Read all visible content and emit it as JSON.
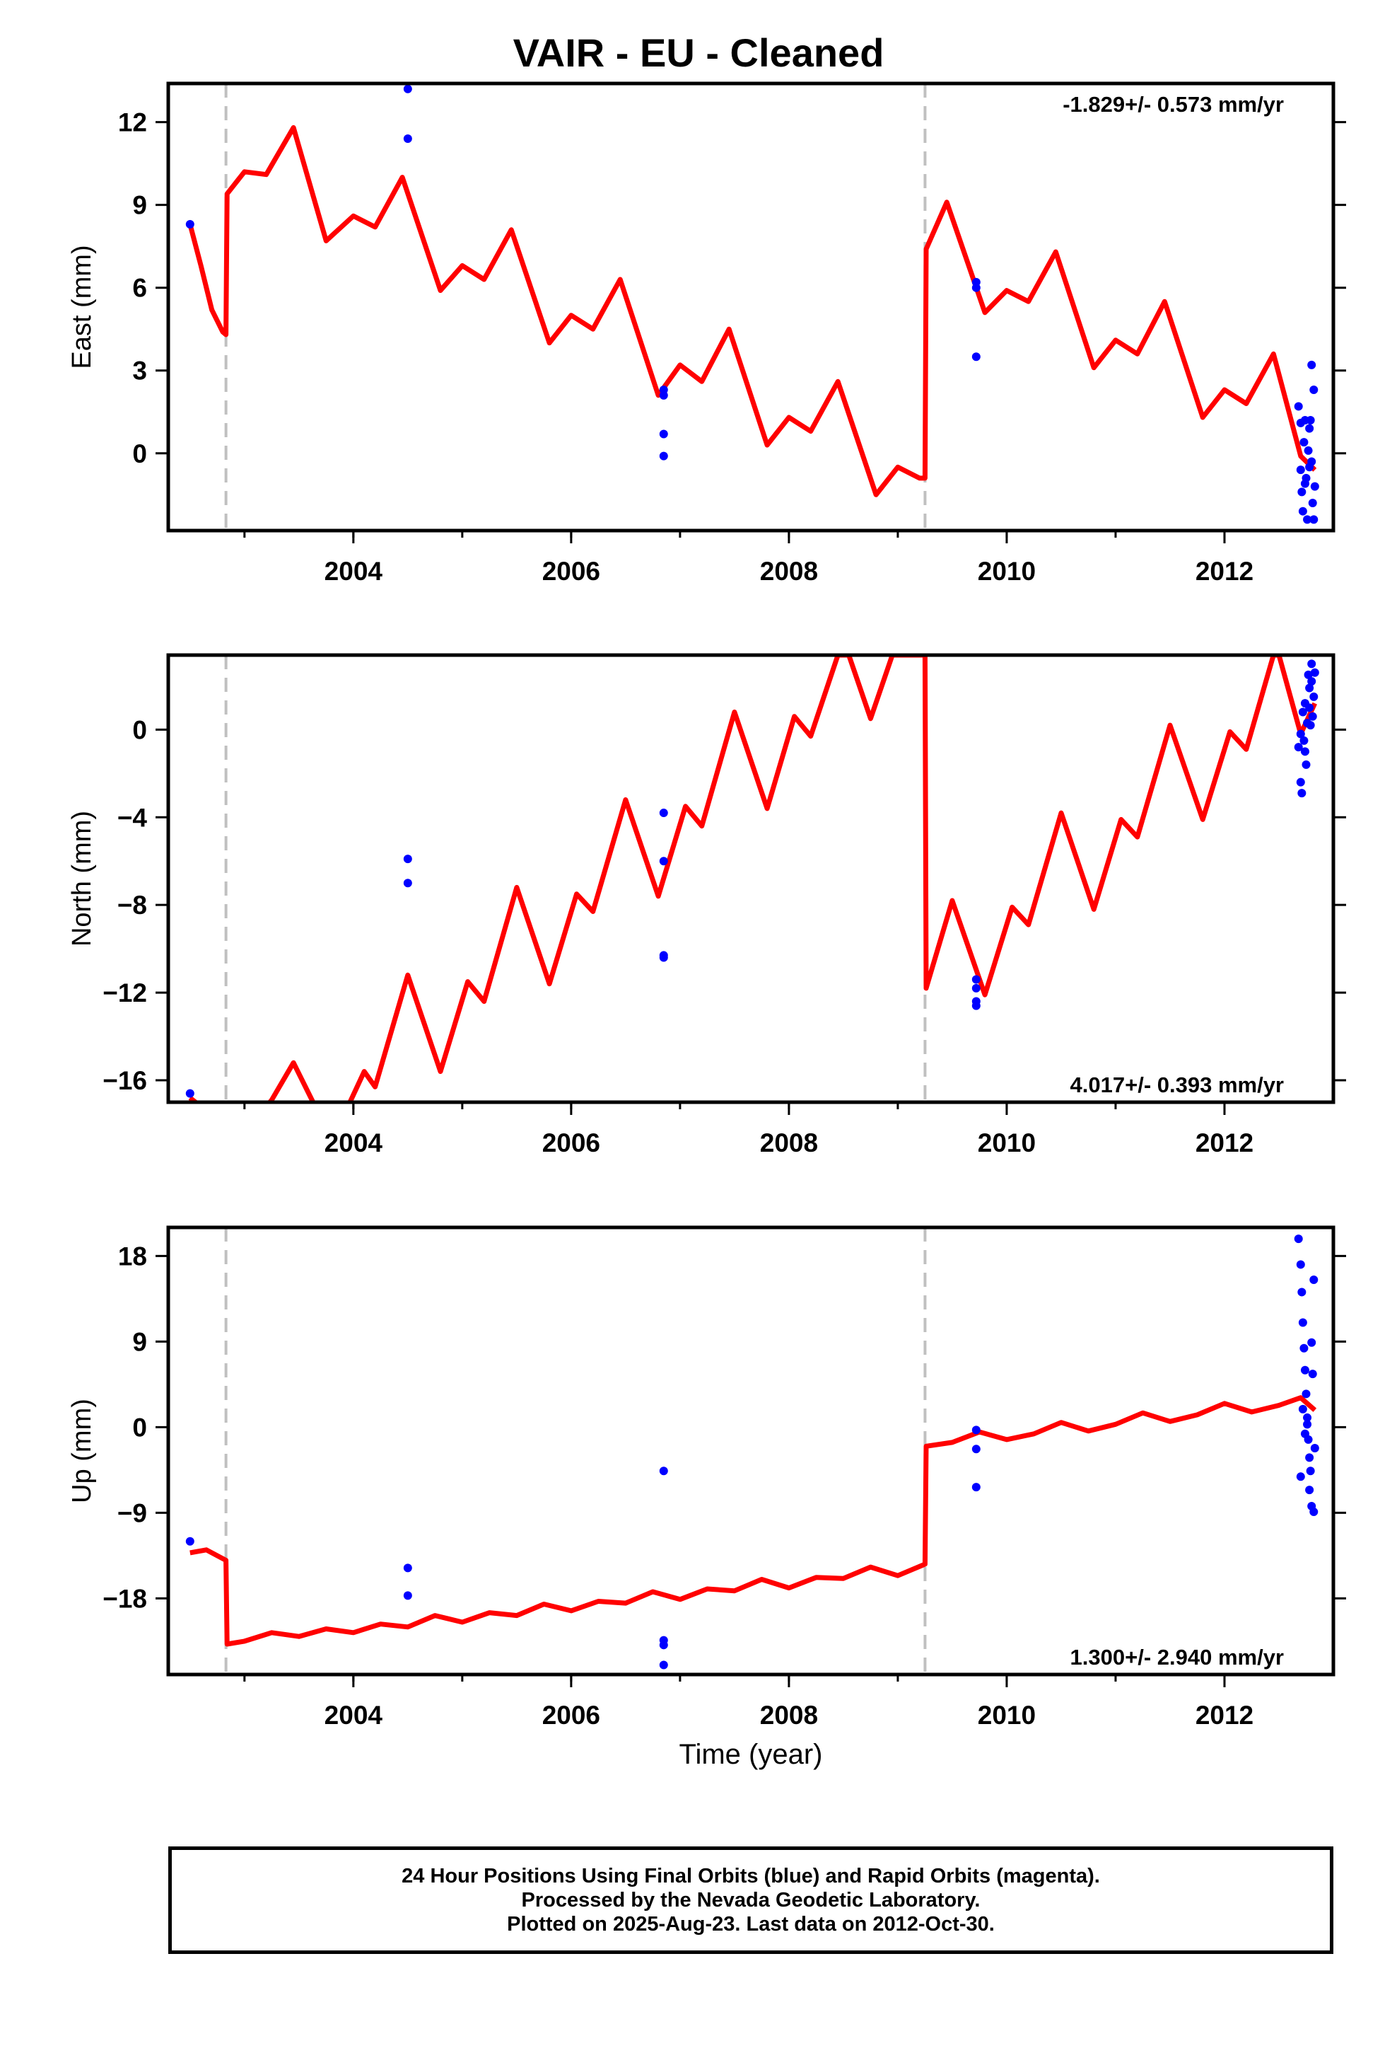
{
  "title": "VAIR  - EU - Cleaned",
  "footer": {
    "line1": "24 Hour Positions Using Final Orbits (blue) and Rapid Orbits (magenta).",
    "line2": "Processed by the Nevada Geodetic Laboratory.",
    "line3": "Plotted on 2025-Aug-23. Last data on 2012-Oct-30."
  },
  "colors": {
    "fit_line": "#ff0000",
    "final_orbits": "#0000ff",
    "offset_marker": "#c0c0c0",
    "axes": "#000000"
  },
  "chart_data": [
    {
      "type": "scatter",
      "component": "east",
      "ylabel": "East (mm)",
      "xlabel": "",
      "xlim": [
        2002.3,
        2013.0
      ],
      "ylim": [
        -2.8,
        13.4
      ],
      "yticks": [
        0,
        3,
        6,
        9,
        12
      ],
      "xticks": [
        2004,
        2006,
        2008,
        2010,
        2012
      ],
      "rate_label": "-1.829+/- 0.573 mm/yr",
      "rate_label_position": "top-right",
      "offsets": [
        2002.83,
        2009.25
      ],
      "fit": {
        "x": [
          2002.5,
          2002.6,
          2002.7,
          2002.8,
          2002.83,
          2002.84,
          2003.0,
          2003.2,
          2003.45,
          2003.75,
          2004.0,
          2004.2,
          2004.45,
          2004.8,
          2005.0,
          2005.2,
          2005.45,
          2005.8,
          2006.0,
          2006.2,
          2006.45,
          2006.8,
          2007.0,
          2007.2,
          2007.45,
          2007.8,
          2008.0,
          2008.2,
          2008.45,
          2008.8,
          2009.0,
          2009.2,
          2009.25,
          2009.26,
          2009.45,
          2009.8,
          2010.0,
          2010.2,
          2010.45,
          2010.8,
          2011.0,
          2011.2,
          2011.45,
          2011.8,
          2012.0,
          2012.2,
          2012.45,
          2012.7,
          2012.83
        ],
        "y": [
          8.3,
          6.8,
          5.2,
          4.4,
          4.3,
          9.4,
          10.2,
          10.1,
          11.8,
          7.7,
          8.6,
          8.2,
          10.0,
          5.9,
          6.8,
          6.3,
          8.1,
          4.0,
          5.0,
          4.5,
          6.3,
          2.1,
          3.2,
          2.6,
          4.5,
          0.3,
          1.3,
          0.8,
          2.6,
          -1.5,
          -0.5,
          -0.9,
          -0.9,
          7.4,
          9.1,
          5.1,
          5.9,
          5.5,
          7.3,
          3.1,
          4.1,
          3.6,
          5.5,
          1.3,
          2.3,
          1.8,
          3.6,
          -0.1,
          -0.6
        ]
      },
      "points": {
        "x": [
          2002.5,
          2004.5,
          2004.5,
          2006.85,
          2006.85,
          2006.85,
          2006.85,
          2009.72,
          2009.72,
          2009.72,
          2012.68,
          2012.7,
          2012.71,
          2012.72,
          2012.73,
          2012.74,
          2012.75,
          2012.76,
          2012.77,
          2012.78,
          2012.79,
          2012.8,
          2012.81,
          2012.82,
          2012.83,
          2012.7,
          2012.74,
          2012.78,
          2012.8,
          2012.82
        ],
        "y": [
          8.3,
          13.2,
          11.4,
          2.3,
          2.1,
          0.7,
          -0.1,
          6.2,
          6.0,
          3.5,
          1.7,
          1.1,
          -1.4,
          -2.1,
          0.4,
          1.2,
          -0.9,
          -2.4,
          0.1,
          -0.5,
          1.2,
          3.2,
          -1.8,
          2.3,
          -1.2,
          -0.6,
          -1.1,
          0.9,
          -0.3,
          -2.4
        ]
      }
    },
    {
      "type": "scatter",
      "component": "north",
      "ylabel": "North (mm)",
      "xlabel": "",
      "xlim": [
        2002.3,
        2013.0
      ],
      "ylim": [
        -17.0,
        3.4
      ],
      "yticks": [
        -16,
        -12,
        -8,
        -4,
        0
      ],
      "xticks": [
        2004,
        2006,
        2008,
        2010,
        2012
      ],
      "rate_label": "4.017+/- 0.393 mm/yr",
      "rate_label_position": "bottom-right",
      "offsets": [
        2002.83,
        2009.25
      ],
      "fit": {
        "x": [
          2002.5,
          2002.6,
          2003.0,
          2003.2,
          2003.25,
          2003.45,
          2003.65,
          2003.95,
          2004.1,
          2004.2,
          2004.5,
          2004.8,
          2005.05,
          2005.2,
          2005.5,
          2005.8,
          2006.05,
          2006.2,
          2006.5,
          2006.8,
          2007.05,
          2007.2,
          2007.5,
          2007.8,
          2008.05,
          2008.2,
          2008.45,
          2008.55,
          2008.75,
          2008.95,
          2009.1,
          2009.25,
          2009.26,
          2009.5,
          2009.8,
          2010.05,
          2010.2,
          2010.5,
          2010.8,
          2011.05,
          2011.2,
          2011.5,
          2011.8,
          2012.05,
          2012.2,
          2012.45,
          2012.5,
          2012.7,
          2012.83
        ],
        "y": [
          -16.8,
          -17.2,
          -17.2,
          -17.2,
          -16.9,
          -15.2,
          -17.2,
          -17.2,
          -15.6,
          -16.3,
          -11.2,
          -15.6,
          -11.5,
          -12.4,
          -7.2,
          -11.6,
          -7.5,
          -8.3,
          -3.2,
          -7.6,
          -3.5,
          -4.4,
          0.8,
          -3.6,
          0.6,
          -0.3,
          3.4,
          3.4,
          0.5,
          3.4,
          3.4,
          3.4,
          -11.8,
          -7.8,
          -12.1,
          -8.1,
          -8.9,
          -3.8,
          -8.2,
          -4.1,
          -4.9,
          0.2,
          -4.1,
          -0.1,
          -0.9,
          3.4,
          3.4,
          -0.2,
          1.2
        ]
      },
      "points": {
        "x": [
          2002.5,
          2004.5,
          2004.5,
          2006.85,
          2006.85,
          2006.85,
          2006.85,
          2009.72,
          2009.72,
          2009.72,
          2009.72,
          2012.68,
          2012.7,
          2012.71,
          2012.72,
          2012.73,
          2012.74,
          2012.75,
          2012.76,
          2012.77,
          2012.78,
          2012.79,
          2012.8,
          2012.81,
          2012.82,
          2012.83,
          2012.7,
          2012.74,
          2012.78,
          2012.8
        ],
        "y": [
          -16.6,
          -5.9,
          -7.0,
          -3.8,
          -6.0,
          -10.3,
          -10.4,
          -11.4,
          -11.8,
          -12.4,
          -12.6,
          -0.8,
          -2.4,
          -2.9,
          0.8,
          -0.5,
          1.2,
          -1.6,
          0.3,
          2.5,
          1.9,
          0.2,
          3.0,
          0.6,
          1.5,
          2.6,
          -0.2,
          -1.0,
          1.0,
          2.2
        ]
      }
    },
    {
      "type": "scatter",
      "component": "up",
      "ylabel": "Up (mm)",
      "xlabel": "Time (year)",
      "xlim": [
        2002.3,
        2013.0
      ],
      "ylim": [
        -26.0,
        21.0
      ],
      "yticks": [
        -18,
        -9,
        0,
        9,
        18
      ],
      "xticks": [
        2004,
        2006,
        2008,
        2010,
        2012
      ],
      "rate_label": "1.300+/- 2.940 mm/yr",
      "rate_label_position": "bottom-right",
      "offsets": [
        2002.83,
        2009.25
      ],
      "fit": {
        "x": [
          2002.5,
          2002.65,
          2002.83,
          2002.84,
          2003.0,
          2003.25,
          2003.5,
          2003.75,
          2004.0,
          2004.25,
          2004.5,
          2004.75,
          2005.0,
          2005.25,
          2005.5,
          2005.75,
          2006.0,
          2006.25,
          2006.5,
          2006.75,
          2007.0,
          2007.25,
          2007.5,
          2007.75,
          2008.0,
          2008.25,
          2008.5,
          2008.75,
          2009.0,
          2009.25,
          2009.26,
          2009.5,
          2009.75,
          2010.0,
          2010.25,
          2010.5,
          2010.75,
          2011.0,
          2011.25,
          2011.5,
          2011.75,
          2012.0,
          2012.25,
          2012.5,
          2012.7,
          2012.83
        ],
        "y": [
          -13.2,
          -12.9,
          -14.0,
          -22.8,
          -22.5,
          -21.6,
          -22.0,
          -21.2,
          -21.6,
          -20.7,
          -21.0,
          -19.8,
          -20.5,
          -19.5,
          -19.8,
          -18.6,
          -19.3,
          -18.3,
          -18.5,
          -17.3,
          -18.1,
          -17.0,
          -17.2,
          -16.0,
          -16.9,
          -15.8,
          -15.9,
          -14.7,
          -15.6,
          -14.4,
          -2.0,
          -1.6,
          -0.5,
          -1.3,
          -0.7,
          0.5,
          -0.4,
          0.3,
          1.5,
          0.6,
          1.3,
          2.5,
          1.6,
          2.3,
          3.1,
          1.8
        ]
      },
      "points": {
        "x": [
          2002.5,
          2004.5,
          2004.5,
          2006.85,
          2006.85,
          2006.85,
          2006.85,
          2009.72,
          2009.72,
          2009.72,
          2012.68,
          2012.7,
          2012.71,
          2012.72,
          2012.73,
          2012.74,
          2012.75,
          2012.76,
          2012.77,
          2012.78,
          2012.79,
          2012.8,
          2012.81,
          2012.82,
          2012.83,
          2012.7,
          2012.72,
          2012.74,
          2012.76,
          2012.78,
          2012.8,
          2012.82
        ],
        "y": [
          -12.0,
          -14.8,
          -17.7,
          -4.6,
          -22.4,
          -22.9,
          -25.0,
          -0.3,
          -2.3,
          -6.3,
          19.8,
          17.1,
          14.2,
          11.0,
          8.3,
          6.0,
          3.5,
          1.0,
          -1.3,
          -3.2,
          -4.6,
          8.9,
          5.6,
          15.5,
          -2.2,
          -5.2,
          1.9,
          -0.7,
          0.3,
          -6.6,
          -8.3,
          -8.9
        ]
      }
    }
  ]
}
